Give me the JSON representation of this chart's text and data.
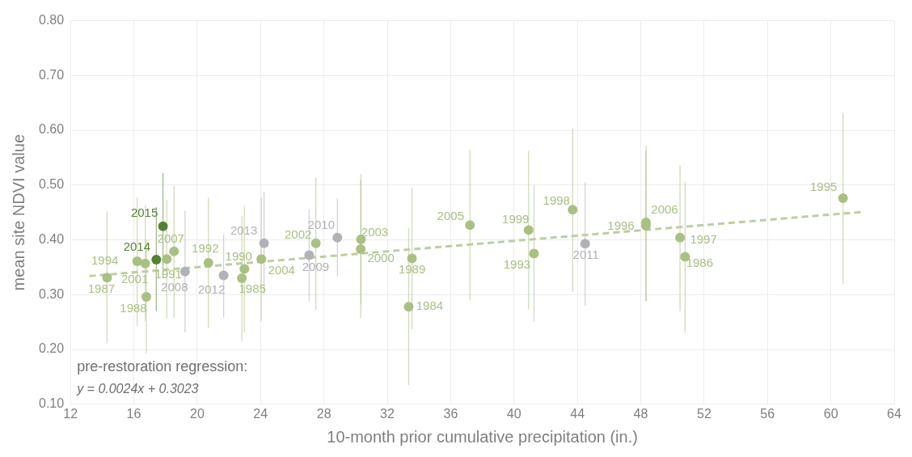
{
  "chart_data": {
    "type": "scatter",
    "xlabel": "10-month prior cumulative precipitation (in.)",
    "ylabel": "mean site NDVI value",
    "xlim": [
      12,
      64
    ],
    "xticks": [
      12,
      16,
      20,
      24,
      28,
      32,
      36,
      40,
      44,
      48,
      52,
      56,
      60,
      64
    ],
    "ylim": [
      0.1,
      0.8
    ],
    "yticks": [
      {
        "value": 0.1,
        "label": "0.10"
      },
      {
        "value": 0.2,
        "label": "0.20"
      },
      {
        "value": 0.3,
        "label": "0.30"
      },
      {
        "value": 0.4,
        "label": "0.40"
      },
      {
        "value": 0.5,
        "label": "0.50"
      },
      {
        "value": 0.6,
        "label": "0.60"
      },
      {
        "value": 0.7,
        "label": "0.70"
      },
      {
        "value": 0.8,
        "label": "0.80"
      }
    ],
    "grid": true,
    "legend": false,
    "marker": "circle",
    "series": [
      {
        "color": "#a9c083",
        "x": [
          14.31,
          16.21,
          16.72,
          16.79,
          18.08,
          18.54,
          20.71,
          22.98,
          22.82,
          24.05,
          27.49,
          30.34,
          30.32,
          33.56,
          33.35,
          37.22,
          40.92,
          41.26,
          43.7,
          48.33,
          48.33,
          50.48,
          50.8,
          60.77
        ],
        "values": [
          0.331,
          0.361,
          0.357,
          0.296,
          0.365,
          0.379,
          0.358,
          0.347,
          0.33,
          0.365,
          0.394,
          0.401,
          0.383,
          0.366,
          0.278,
          0.427,
          0.418,
          0.375,
          0.455,
          0.426,
          0.432,
          0.404,
          0.369,
          0.476
        ],
        "errors": [
          [
            0.211,
            0.452
          ],
          [
            0.243,
            0.478
          ],
          [
            0.252,
            0.463
          ],
          [
            0.193,
            0.4
          ],
          [
            0.256,
            0.473
          ],
          [
            0.258,
            0.499
          ],
          [
            0.239,
            0.477
          ],
          [
            0.231,
            0.462
          ],
          [
            0.215,
            0.444
          ],
          [
            0.252,
            0.477
          ],
          [
            0.273,
            0.514
          ],
          [
            0.282,
            0.52
          ],
          [
            0.257,
            0.51
          ],
          [
            0.237,
            0.495
          ],
          [
            0.135,
            0.421
          ],
          [
            0.29,
            0.565
          ],
          [
            0.273,
            0.562
          ],
          [
            0.251,
            0.5
          ],
          [
            0.305,
            0.603
          ],
          [
            0.288,
            0.563
          ],
          [
            0.288,
            0.572
          ],
          [
            0.27,
            0.536
          ],
          [
            0.231,
            0.506
          ],
          [
            0.32,
            0.632
          ]
        ]
      },
      {
        "color": "#b1b1b8",
        "x": [
          19.23,
          21.67,
          24.22,
          27.07,
          28.85,
          44.49
        ],
        "values": [
          0.342,
          0.335,
          0.394,
          0.372,
          0.404,
          0.393
        ],
        "errors": [
          [
            0.231,
            0.453
          ],
          [
            0.258,
            0.41
          ],
          [
            0.3,
            0.487
          ],
          [
            0.288,
            0.456
          ],
          [
            0.333,
            0.475
          ],
          [
            0.28,
            0.505
          ]
        ]
      },
      {
        "color": "#548235",
        "x": [
          17.42,
          17.84
        ],
        "values": [
          0.364,
          0.425
        ],
        "errors": [
          [
            0.27,
            0.46
          ],
          [
            0.33,
            0.522
          ]
        ]
      },
      {
        "type": "line",
        "color": "#bccfa0",
        "line_style": "dashed",
        "marker": "none",
        "x": [
          13.2,
          62
        ],
        "values": [
          0.334,
          0.451
        ]
      }
    ],
    "annotations": [
      {
        "text": "1987",
        "x": 14.31,
        "y": 0.331
      },
      {
        "text": "1994",
        "x": 16.21,
        "y": 0.361
      },
      {
        "text": "2001",
        "x": 16.72,
        "y": 0.357
      },
      {
        "text": "1988",
        "x": 16.79,
        "y": 0.296
      },
      {
        "text": "2014",
        "x": 17.42,
        "y": 0.364
      },
      {
        "text": "2015",
        "x": 17.84,
        "y": 0.425
      },
      {
        "text": "1991",
        "x": 18.08,
        "y": 0.365
      },
      {
        "text": "2007",
        "x": 18.54,
        "y": 0.379
      },
      {
        "text": "2008",
        "x": 19.23,
        "y": 0.342
      },
      {
        "text": "1992",
        "x": 20.71,
        "y": 0.358
      },
      {
        "text": "2012",
        "x": 21.67,
        "y": 0.335
      },
      {
        "text": "1990",
        "x": 22.98,
        "y": 0.347
      },
      {
        "text": "1985",
        "x": 22.82,
        "y": 0.33
      },
      {
        "text": "2004",
        "x": 24.05,
        "y": 0.365
      },
      {
        "text": "2013",
        "x": 24.22,
        "y": 0.394
      },
      {
        "text": "2009",
        "x": 27.07,
        "y": 0.372
      },
      {
        "text": "2002",
        "x": 27.49,
        "y": 0.394
      },
      {
        "text": "2010",
        "x": 28.85,
        "y": 0.404
      },
      {
        "text": "2003",
        "x": 30.34,
        "y": 0.401
      },
      {
        "text": "2000",
        "x": 30.32,
        "y": 0.383
      },
      {
        "text": "1989",
        "x": 33.56,
        "y": 0.366
      },
      {
        "text": "1984",
        "x": 33.35,
        "y": 0.278
      },
      {
        "text": "2005",
        "x": 37.22,
        "y": 0.427
      },
      {
        "text": "1999",
        "x": 40.92,
        "y": 0.418
      },
      {
        "text": "1993",
        "x": 41.26,
        "y": 0.375
      },
      {
        "text": "1998",
        "x": 43.7,
        "y": 0.455
      },
      {
        "text": "2011",
        "x": 44.49,
        "y": 0.393
      },
      {
        "text": "1996",
        "x": 48.33,
        "y": 0.426
      },
      {
        "text": "2006",
        "x": 48.33,
        "y": 0.432
      },
      {
        "text": "1997",
        "x": 50.48,
        "y": 0.404
      },
      {
        "text": "1986",
        "x": 50.8,
        "y": 0.369
      },
      {
        "text": "1995",
        "x": 60.77,
        "y": 0.476
      },
      "pre-restoration regression:",
      "y = 0.0024x + 0.3023"
    ]
  }
}
